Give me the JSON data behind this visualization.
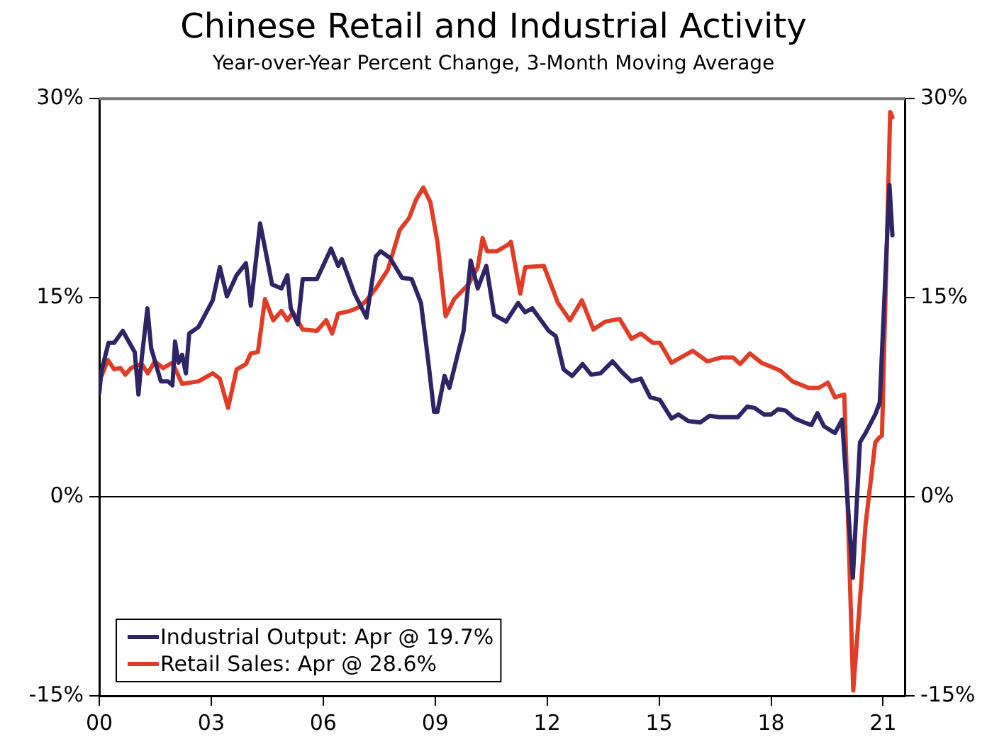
{
  "chart_data": {
    "type": "line",
    "title": "Chinese Retail and Industrial Activity",
    "subtitle": "Year-over-Year Percent Change, 3-Month Moving Average",
    "xlim": [
      2000,
      2021.58
    ],
    "xticks": [
      {
        "value": 2000,
        "label": "00"
      },
      {
        "value": 2003,
        "label": "03"
      },
      {
        "value": 2006,
        "label": "06"
      },
      {
        "value": 2009,
        "label": "09"
      },
      {
        "value": 2012,
        "label": "12"
      },
      {
        "value": 2015,
        "label": "15"
      },
      {
        "value": 2018,
        "label": "18"
      },
      {
        "value": 2021,
        "label": "21"
      }
    ],
    "ylim": [
      -15,
      30
    ],
    "yticks": [
      {
        "value": -15,
        "label": "-15%"
      },
      {
        "value": 0,
        "label": "0%"
      },
      {
        "value": 15,
        "label": "15%"
      },
      {
        "value": 30,
        "label": "30%"
      }
    ],
    "y2lim": [
      -15,
      30
    ],
    "y2ticks": [
      {
        "value": -15,
        "label": "-15%"
      },
      {
        "value": 0,
        "label": "0%"
      },
      {
        "value": 15,
        "label": "15%"
      },
      {
        "value": 30,
        "label": "30%"
      }
    ],
    "grid": false,
    "legend": "bottom left",
    "marker": "none",
    "line_style": "solid",
    "ref_lines": [
      {
        "axis": "y",
        "value": 0,
        "color": "#000000"
      }
    ],
    "series": [
      {
        "name": "Industrial Output: Apr @ 19.7%",
        "color": "#2e2466",
        "x": [
          2000.0,
          2000.06,
          2000.25,
          2000.4,
          2000.63,
          2000.95,
          2001.05,
          2001.14,
          2001.29,
          2001.39,
          2001.65,
          2001.84,
          2001.96,
          2002.03,
          2002.12,
          2002.22,
          2002.32,
          2002.41,
          2002.66,
          2003.04,
          2003.23,
          2003.42,
          2003.68,
          2003.93,
          2004.06,
          2004.31,
          2004.63,
          2004.88,
          2005.04,
          2005.13,
          2005.32,
          2005.45,
          2005.83,
          2006.21,
          2006.4,
          2006.5,
          2006.84,
          2007.16,
          2007.41,
          2007.54,
          2007.79,
          2008.11,
          2008.37,
          2008.62,
          2008.81,
          2008.97,
          2009.06,
          2009.25,
          2009.38,
          2009.76,
          2009.95,
          2010.14,
          2010.37,
          2010.58,
          2010.9,
          2011.22,
          2011.41,
          2011.6,
          2012.04,
          2012.23,
          2012.44,
          2012.67,
          2012.95,
          2013.18,
          2013.43,
          2013.75,
          2014.0,
          2014.26,
          2014.51,
          2014.76,
          2015.02,
          2015.33,
          2015.52,
          2015.78,
          2016.1,
          2016.35,
          2016.6,
          2016.86,
          2017.11,
          2017.36,
          2017.55,
          2017.81,
          2018.0,
          2018.19,
          2018.38,
          2018.63,
          2018.89,
          2019.08,
          2019.24,
          2019.42,
          2019.71,
          2019.9,
          2020.19,
          2020.38,
          2020.53,
          2020.79,
          2020.91,
          2021.17,
          2021.25
        ],
        "values": [
          7.8,
          9.5,
          11.6,
          11.6,
          12.5,
          10.9,
          7.7,
          10.5,
          14.2,
          11.2,
          8.7,
          8.7,
          8.4,
          11.7,
          10.1,
          10.7,
          9.3,
          12.3,
          12.8,
          14.8,
          17.3,
          15.1,
          16.7,
          17.6,
          14.4,
          20.6,
          16.0,
          15.7,
          16.7,
          14.2,
          13.0,
          16.4,
          16.4,
          18.7,
          17.4,
          17.9,
          15.3,
          13.5,
          18.1,
          18.5,
          18.0,
          16.5,
          16.4,
          14.6,
          10.3,
          6.4,
          6.4,
          9.1,
          8.2,
          12.5,
          17.8,
          15.7,
          17.4,
          13.7,
          13.2,
          14.6,
          13.9,
          14.2,
          12.5,
          12.1,
          9.6,
          9.1,
          10.0,
          9.2,
          9.3,
          10.2,
          9.4,
          8.7,
          8.9,
          7.5,
          7.3,
          5.9,
          6.2,
          5.7,
          5.6,
          6.1,
          6.0,
          6.0,
          6.0,
          6.8,
          6.7,
          6.2,
          6.2,
          6.6,
          6.5,
          5.9,
          5.6,
          5.4,
          6.3,
          5.3,
          4.8,
          5.8,
          -6.1,
          4.1,
          4.8,
          6.2,
          7.1,
          23.5,
          19.7
        ]
      },
      {
        "name": "Retail Sales: Apr @ 28.6%",
        "color": "#e03c26",
        "x": [
          2000.0,
          2000.06,
          2000.23,
          2000.4,
          2000.57,
          2000.7,
          2000.85,
          2001.01,
          2001.14,
          2001.3,
          2001.49,
          2001.71,
          2001.96,
          2002.22,
          2002.66,
          2003.04,
          2003.23,
          2003.45,
          2003.68,
          2003.93,
          2004.06,
          2004.25,
          2004.44,
          2004.66,
          2004.88,
          2005.04,
          2005.19,
          2005.45,
          2005.83,
          2006.08,
          2006.24,
          2006.4,
          2006.72,
          2006.97,
          2007.16,
          2007.41,
          2007.73,
          2008.05,
          2008.3,
          2008.49,
          2008.68,
          2008.87,
          2009.06,
          2009.28,
          2009.51,
          2009.89,
          2010.14,
          2010.27,
          2010.39,
          2010.65,
          2010.96,
          2011.03,
          2011.28,
          2011.41,
          2011.91,
          2012.29,
          2012.61,
          2012.93,
          2013.24,
          2013.56,
          2013.94,
          2014.26,
          2014.51,
          2014.83,
          2015.02,
          2015.33,
          2015.9,
          2016.29,
          2016.67,
          2016.98,
          2017.17,
          2017.43,
          2017.74,
          2018.0,
          2018.25,
          2018.57,
          2019.01,
          2019.27,
          2019.52,
          2019.71,
          2019.96,
          2020.2,
          2020.53,
          2020.79,
          2020.91,
          2020.97,
          2021.19,
          2021.25
        ],
        "values": [
          9.1,
          9.1,
          10.3,
          9.6,
          9.7,
          9.2,
          9.7,
          9.9,
          10.0,
          9.3,
          10.2,
          9.7,
          10.1,
          8.5,
          8.7,
          9.3,
          8.9,
          6.7,
          9.6,
          10.0,
          10.8,
          10.9,
          14.9,
          13.3,
          14.0,
          13.3,
          13.9,
          12.6,
          12.5,
          13.3,
          12.3,
          13.8,
          14.0,
          14.3,
          14.8,
          15.7,
          17.1,
          20.1,
          21.0,
          22.4,
          23.3,
          22.2,
          19.2,
          13.6,
          14.9,
          16.0,
          17.3,
          19.5,
          18.5,
          18.5,
          19.0,
          19.2,
          15.3,
          17.3,
          17.4,
          14.6,
          13.3,
          14.8,
          12.6,
          13.2,
          13.4,
          11.9,
          12.3,
          11.6,
          11.6,
          10.1,
          11.0,
          10.2,
          10.5,
          10.5,
          10.0,
          10.8,
          10.1,
          9.8,
          9.5,
          8.7,
          8.2,
          8.2,
          8.6,
          7.5,
          7.7,
          -14.6,
          -2.1,
          4.1,
          4.5,
          4.6,
          29.0,
          28.6
        ]
      }
    ]
  }
}
